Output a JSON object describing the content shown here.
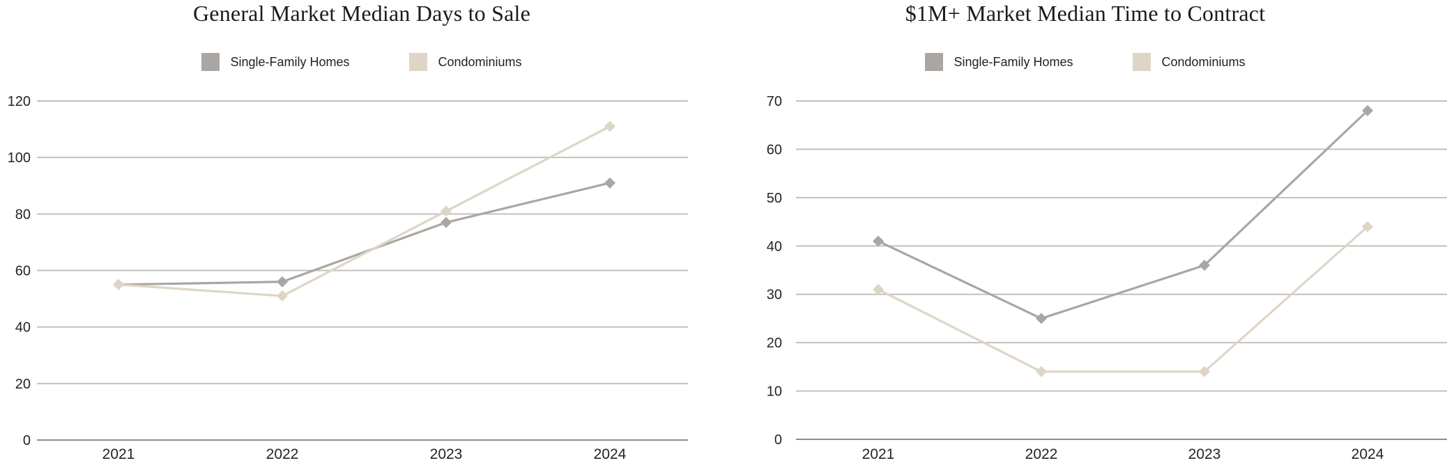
{
  "page": {
    "background": "#ffffff"
  },
  "colors": {
    "grid": "#c3c1bf",
    "axis": "#8f8d8b",
    "tick_text": "#242424",
    "title_text": "#1c1c1c"
  },
  "chart_data": [
    {
      "type": "line",
      "title": "General Market Median Days to Sale",
      "categories": [
        "2021",
        "2022",
        "2023",
        "2024"
      ],
      "series": [
        {
          "name": "Single-Family Homes",
          "color": "#a9a6a3",
          "values": [
            55,
            56,
            77,
            91
          ]
        },
        {
          "name": "Condominiums",
          "color": "#ded5c6",
          "values": [
            55,
            51,
            81,
            111
          ]
        }
      ],
      "xlabel": "",
      "ylabel": "",
      "ylim": [
        0,
        120
      ],
      "ytick_step": 20,
      "grid": true,
      "legend_position": "top-center",
      "marker": "diamond"
    },
    {
      "type": "line",
      "title": "$1M+ Market Median Time to Contract",
      "categories": [
        "2021",
        "2022",
        "2023",
        "2024"
      ],
      "series": [
        {
          "name": "Single-Family Homes",
          "color": "#a9a6a3",
          "values": [
            41,
            25,
            36,
            68
          ]
        },
        {
          "name": "Condominiums",
          "color": "#ded5c6",
          "values": [
            31,
            14,
            14,
            44
          ]
        }
      ],
      "xlabel": "",
      "ylabel": "",
      "ylim": [
        0,
        70
      ],
      "ytick_step": 10,
      "grid": true,
      "legend_position": "top-center",
      "marker": "diamond"
    }
  ]
}
